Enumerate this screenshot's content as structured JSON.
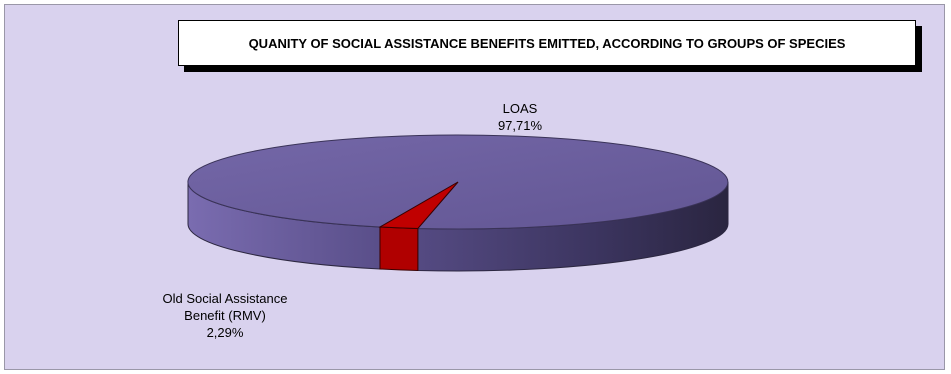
{
  "chart_data": {
    "type": "pie",
    "style": "3d",
    "title": "QUANITY OF SOCIAL ASSISTANCE BENEFITS EMITTED, ACCORDING TO GROUPS OF SPECIES",
    "unit": "%",
    "slices": [
      {
        "name": "LOAS",
        "value": 97.71,
        "label_lines": [
          "LOAS",
          "97,71%"
        ],
        "color": "#6a5e9e"
      },
      {
        "name": "Old Social Assistance Benefit (RMV)",
        "value": 2.29,
        "label_lines": [
          "Old Social Assistance",
          "Benefit (RMV)",
          "2,29%"
        ],
        "color": "#b00000"
      }
    ]
  }
}
